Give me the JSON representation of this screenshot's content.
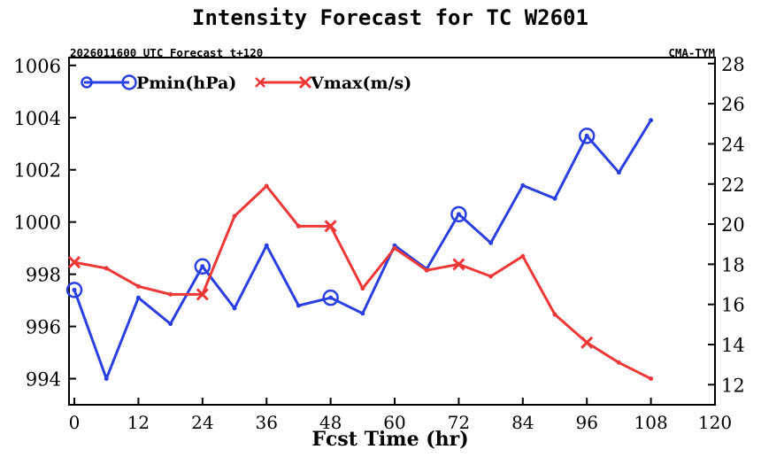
{
  "chart_data": {
    "type": "line",
    "title": "Intensity Forecast for TC W2601",
    "subtitle_left": "2026011600 UTC Forecast t+120",
    "subtitle_right": "CMA-TYM",
    "xlabel": "Fcst Time (hr)",
    "xlim": [
      -1,
      120
    ],
    "x_ticks": [
      0,
      12,
      24,
      36,
      48,
      60,
      72,
      84,
      96,
      108,
      120
    ],
    "x_tick_labels": [
      "0",
      "12",
      "24",
      "36",
      "48",
      "60",
      "72",
      "84",
      "96",
      "108",
      "120"
    ],
    "y_left": {
      "label": "Pmin(hPa)",
      "lim": [
        993,
        1006.3
      ],
      "ticks": [
        994,
        996,
        998,
        1000,
        1002,
        1004,
        1006
      ],
      "tick_labels": [
        "994",
        "996",
        "998",
        "1000",
        "1002",
        "1004",
        "1006"
      ]
    },
    "y_right": {
      "label": "Vmax(m/s)",
      "lim": [
        11,
        28.3
      ],
      "ticks": [
        12,
        14,
        16,
        18,
        20,
        22,
        24,
        26,
        28
      ],
      "tick_labels": [
        "12",
        "14",
        "16",
        "18",
        "20",
        "22",
        "24",
        "26",
        "28"
      ]
    },
    "x": [
      0,
      6,
      12,
      18,
      24,
      30,
      36,
      42,
      48,
      54,
      60,
      66,
      72,
      78,
      84,
      90,
      96,
      102,
      108
    ],
    "series": [
      {
        "name": "Pmin(hPa)",
        "axis": "left",
        "color": "#2a3fe0",
        "marker": "circle",
        "marker_every": 24,
        "values": [
          997.4,
          994.0,
          997.1,
          996.1,
          998.3,
          996.7,
          999.1,
          996.8,
          997.1,
          996.5,
          999.1,
          998.2,
          1000.3,
          999.2,
          1001.4,
          1000.9,
          1003.3,
          1001.9,
          1003.9
        ]
      },
      {
        "name": "Vmax(m/s)",
        "axis": "right",
        "color": "#ee3838",
        "marker": "x",
        "marker_every": 24,
        "values": [
          18.1,
          17.8,
          16.9,
          16.5,
          16.5,
          20.4,
          21.9,
          19.9,
          19.9,
          16.8,
          18.8,
          17.7,
          18.0,
          17.4,
          18.4,
          15.5,
          14.1,
          13.1,
          12.3
        ]
      }
    ],
    "legend": "top-left"
  }
}
